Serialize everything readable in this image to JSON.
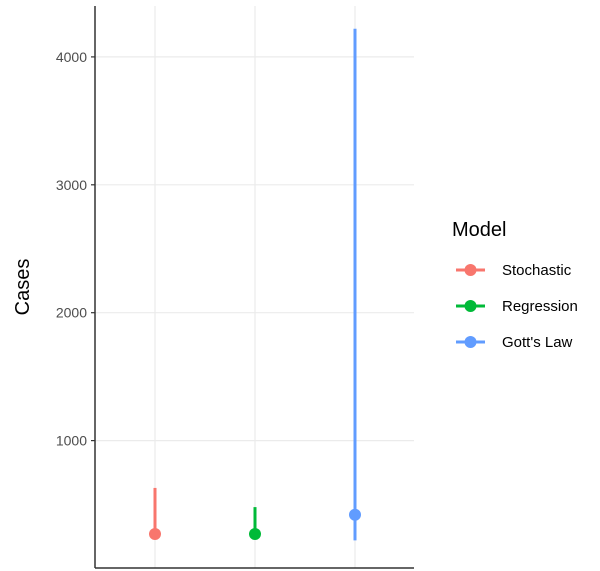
{
  "chart_data": {
    "type": "scatter",
    "title": "",
    "xlabel": "",
    "ylabel": "Cases",
    "ylim": [
      0,
      4400
    ],
    "yticks": [
      1000,
      2000,
      3000,
      4000
    ],
    "ytick_labels": [
      "1000",
      "2000",
      "3000",
      "4000"
    ],
    "grid": true,
    "legend": {
      "title": "Model",
      "position": "right"
    },
    "series": [
      {
        "name": "Stochastic",
        "color": "#F8766D",
        "point": 270,
        "low": 270,
        "high": 630
      },
      {
        "name": "Regression",
        "color": "#00BA38",
        "point": 270,
        "low": 270,
        "high": 480
      },
      {
        "name": "Gott's Law",
        "color": "#619CFF",
        "point": 420,
        "low": 220,
        "high": 4220
      }
    ]
  }
}
